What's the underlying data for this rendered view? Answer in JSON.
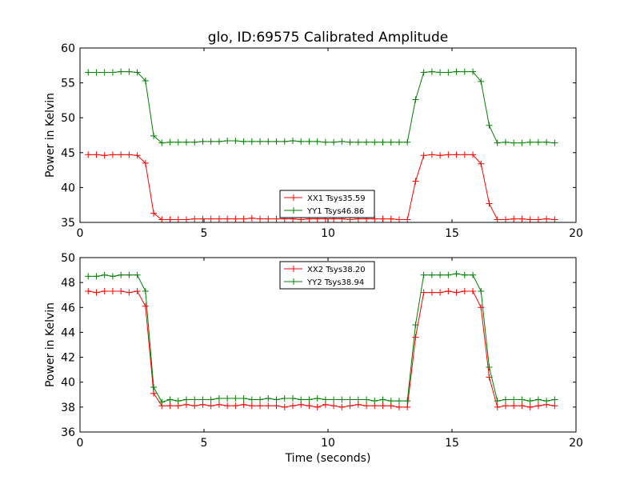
{
  "figure": {
    "title": "glo, ID:69575 Calibrated Amplitude",
    "xlabel": "Time (seconds)"
  },
  "chart_data": [
    {
      "type": "line",
      "title": "glo, ID:69575 Calibrated Amplitude",
      "xlabel": "",
      "ylabel": "Power in Kelvin",
      "xlim": [
        0,
        20
      ],
      "ylim": [
        35,
        60
      ],
      "xticks": [
        0,
        5,
        10,
        15,
        20
      ],
      "yticks": [
        35,
        40,
        45,
        50,
        55,
        60
      ],
      "grid": false,
      "legend_position": "bottom-center",
      "x": [
        0.33,
        0.66,
        0.99,
        1.32,
        1.65,
        1.98,
        2.31,
        2.64,
        2.97,
        3.3,
        3.63,
        3.96,
        4.29,
        4.62,
        4.95,
        5.28,
        5.61,
        5.94,
        6.27,
        6.6,
        6.93,
        7.26,
        7.59,
        7.92,
        8.25,
        8.58,
        8.91,
        9.24,
        9.57,
        9.9,
        10.23,
        10.56,
        10.89,
        11.22,
        11.55,
        11.88,
        12.21,
        12.54,
        12.87,
        13.2,
        13.53,
        13.86,
        14.19,
        14.52,
        14.85,
        15.18,
        15.51,
        15.84,
        16.17,
        16.5,
        16.83,
        17.16,
        17.49,
        17.82,
        18.15,
        18.48,
        18.81,
        19.14
      ],
      "series": [
        {
          "name": "XX1 Tsys35.59",
          "color": "#ff0000",
          "values": [
            44.7,
            44.7,
            44.6,
            44.7,
            44.7,
            44.7,
            44.6,
            43.5,
            36.3,
            35.4,
            35.4,
            35.4,
            35.4,
            35.5,
            35.5,
            35.5,
            35.5,
            35.5,
            35.5,
            35.5,
            35.6,
            35.5,
            35.5,
            35.5,
            35.5,
            35.5,
            35.4,
            35.5,
            35.5,
            35.5,
            35.5,
            35.5,
            35.4,
            35.5,
            35.5,
            35.5,
            35.5,
            35.5,
            35.4,
            35.4,
            40.9,
            44.6,
            44.7,
            44.6,
            44.7,
            44.7,
            44.7,
            44.7,
            43.4,
            37.7,
            35.4,
            35.4,
            35.5,
            35.5,
            35.4,
            35.4,
            35.5,
            35.4
          ]
        },
        {
          "name": "YY1 Tsys46.86",
          "color": "#008000",
          "values": [
            56.5,
            56.5,
            56.5,
            56.5,
            56.6,
            56.6,
            56.5,
            55.3,
            47.4,
            46.4,
            46.5,
            46.5,
            46.5,
            46.5,
            46.6,
            46.6,
            46.6,
            46.7,
            46.7,
            46.6,
            46.6,
            46.6,
            46.6,
            46.6,
            46.6,
            46.7,
            46.6,
            46.6,
            46.6,
            46.5,
            46.5,
            46.6,
            46.5,
            46.5,
            46.5,
            46.5,
            46.5,
            46.5,
            46.5,
            46.5,
            52.6,
            56.5,
            56.6,
            56.5,
            56.5,
            56.6,
            56.6,
            56.6,
            55.2,
            48.9,
            46.4,
            46.5,
            46.4,
            46.4,
            46.5,
            46.5,
            46.5,
            46.4
          ]
        }
      ]
    },
    {
      "type": "line",
      "title": "",
      "xlabel": "Time (seconds)",
      "ylabel": "Power in Kelvin",
      "xlim": [
        0,
        20
      ],
      "ylim": [
        36,
        50
      ],
      "xticks": [
        0,
        5,
        10,
        15,
        20
      ],
      "yticks": [
        36,
        38,
        40,
        42,
        44,
        46,
        48,
        50
      ],
      "grid": false,
      "legend_position": "top-center",
      "x": [
        0.33,
        0.66,
        0.99,
        1.32,
        1.65,
        1.98,
        2.31,
        2.64,
        2.97,
        3.3,
        3.63,
        3.96,
        4.29,
        4.62,
        4.95,
        5.28,
        5.61,
        5.94,
        6.27,
        6.6,
        6.93,
        7.26,
        7.59,
        7.92,
        8.25,
        8.58,
        8.91,
        9.24,
        9.57,
        9.9,
        10.23,
        10.56,
        10.89,
        11.22,
        11.55,
        11.88,
        12.21,
        12.54,
        12.87,
        13.2,
        13.53,
        13.86,
        14.19,
        14.52,
        14.85,
        15.18,
        15.51,
        15.84,
        16.17,
        16.5,
        16.83,
        17.16,
        17.49,
        17.82,
        18.15,
        18.48,
        18.81,
        19.14
      ],
      "series": [
        {
          "name": "XX2 Tsys38.20",
          "color": "#ff0000",
          "values": [
            47.3,
            47.2,
            47.3,
            47.3,
            47.3,
            47.2,
            47.3,
            46.1,
            39.1,
            38.1,
            38.1,
            38.1,
            38.2,
            38.1,
            38.2,
            38.1,
            38.2,
            38.1,
            38.1,
            38.2,
            38.1,
            38.1,
            38.1,
            38.1,
            38.0,
            38.1,
            38.2,
            38.1,
            38.0,
            38.2,
            38.1,
            38.0,
            38.1,
            38.2,
            38.1,
            38.1,
            38.1,
            38.1,
            38.0,
            38.0,
            43.6,
            47.2,
            47.2,
            47.2,
            47.3,
            47.2,
            47.3,
            47.3,
            46.0,
            40.4,
            38.0,
            38.1,
            38.1,
            38.1,
            38.0,
            38.1,
            38.2,
            38.1
          ]
        },
        {
          "name": "YY2 Tsys38.94",
          "color": "#008000",
          "values": [
            48.5,
            48.5,
            48.6,
            48.5,
            48.6,
            48.6,
            48.6,
            47.3,
            39.6,
            38.4,
            38.6,
            38.5,
            38.6,
            38.6,
            38.6,
            38.6,
            38.7,
            38.7,
            38.7,
            38.7,
            38.6,
            38.6,
            38.7,
            38.6,
            38.7,
            38.7,
            38.6,
            38.6,
            38.7,
            38.6,
            38.6,
            38.6,
            38.6,
            38.6,
            38.6,
            38.5,
            38.6,
            38.5,
            38.5,
            38.5,
            44.6,
            48.6,
            48.6,
            48.6,
            48.6,
            48.7,
            48.6,
            48.6,
            47.3,
            41.2,
            38.5,
            38.6,
            38.6,
            38.6,
            38.5,
            38.6,
            38.5,
            38.6
          ]
        }
      ]
    }
  ]
}
